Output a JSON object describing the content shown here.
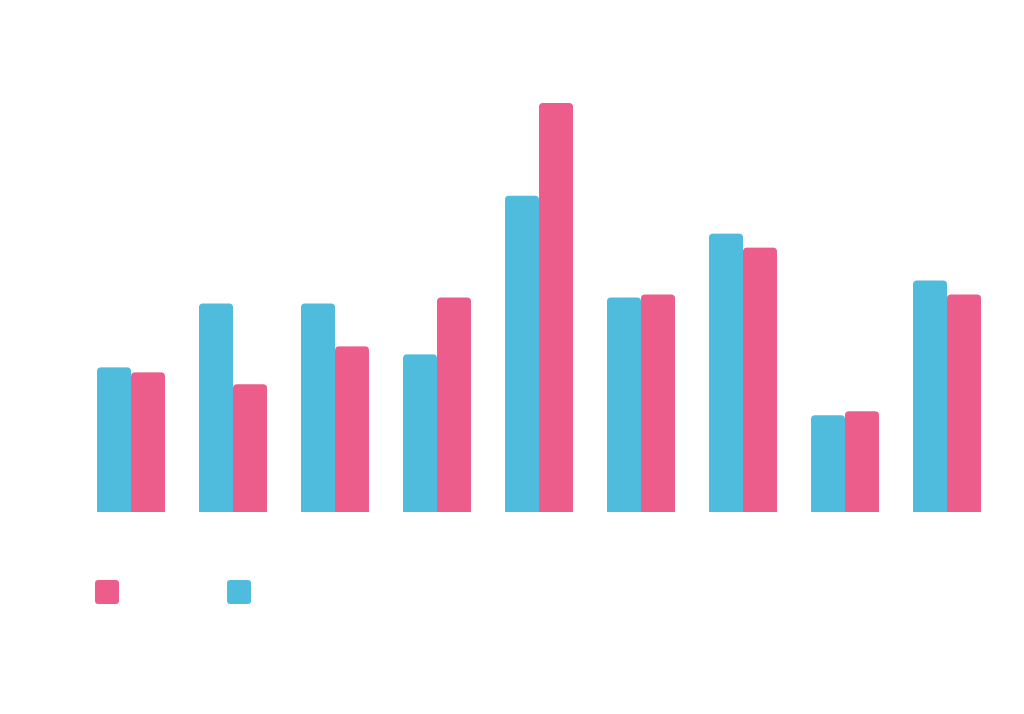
{
  "colors": {
    "series_blue": "#4fbcde",
    "series_pink": "#ec5d8c",
    "background": "#ffffff"
  },
  "chart_data": {
    "type": "bar",
    "categories": [
      "",
      "",
      "",
      "",
      "",
      "",
      "",
      "",
      ""
    ],
    "series": [
      {
        "color_key": "series_blue",
        "values": [
          145,
          209,
          209,
          158,
          317,
          215,
          279,
          97,
          232
        ]
      },
      {
        "color_key": "series_pink",
        "values": [
          140,
          128,
          166,
          215,
          410,
          218,
          265,
          101,
          218
        ]
      }
    ],
    "ylim": [
      0,
      430
    ],
    "grid": false,
    "legend": {
      "placement": "bottom-left",
      "entries": [
        {
          "color_key": "series_pink",
          "label": ""
        },
        {
          "color_key": "series_blue",
          "label": ""
        }
      ]
    },
    "title": "",
    "xlabel": "",
    "ylabel": ""
  }
}
